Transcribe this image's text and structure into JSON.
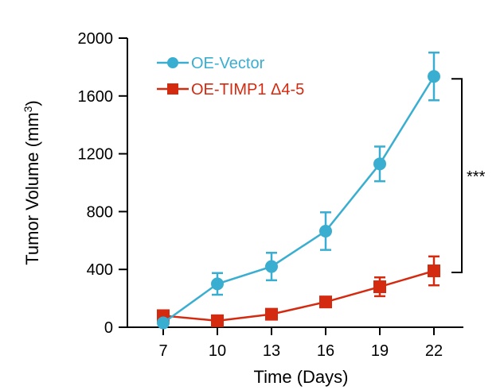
{
  "chart_data": {
    "type": "line",
    "xlabel": "Time (Days)",
    "ylabel_main": "Tumor Volume (mm",
    "ylabel_sup": "3",
    "ylabel_close": ")",
    "x": [
      7,
      10,
      13,
      16,
      19,
      22
    ],
    "xticks": [
      "7",
      "10",
      "13",
      "16",
      "19",
      "22"
    ],
    "ylim": [
      0,
      2000
    ],
    "yticks": [
      "0",
      "400",
      "800",
      "1200",
      "1600",
      "2000"
    ],
    "ytick_values": [
      0,
      400,
      800,
      1200,
      1600,
      2000
    ],
    "series": [
      {
        "name": "OE-Vector",
        "color": "#3aaed0",
        "marker": "circle",
        "values": [
          30,
          300,
          420,
          665,
          1130,
          1735
        ],
        "errors": [
          0,
          75,
          95,
          130,
          120,
          165
        ]
      },
      {
        "name": "OE-TIMP1 Δ4-5",
        "color": "#d42a10",
        "marker": "square",
        "values": [
          80,
          45,
          90,
          175,
          280,
          390
        ],
        "errors": [
          0,
          0,
          0,
          0,
          65,
          100
        ]
      }
    ],
    "significance": {
      "label": "***",
      "from": 390,
      "to": 1735
    }
  }
}
